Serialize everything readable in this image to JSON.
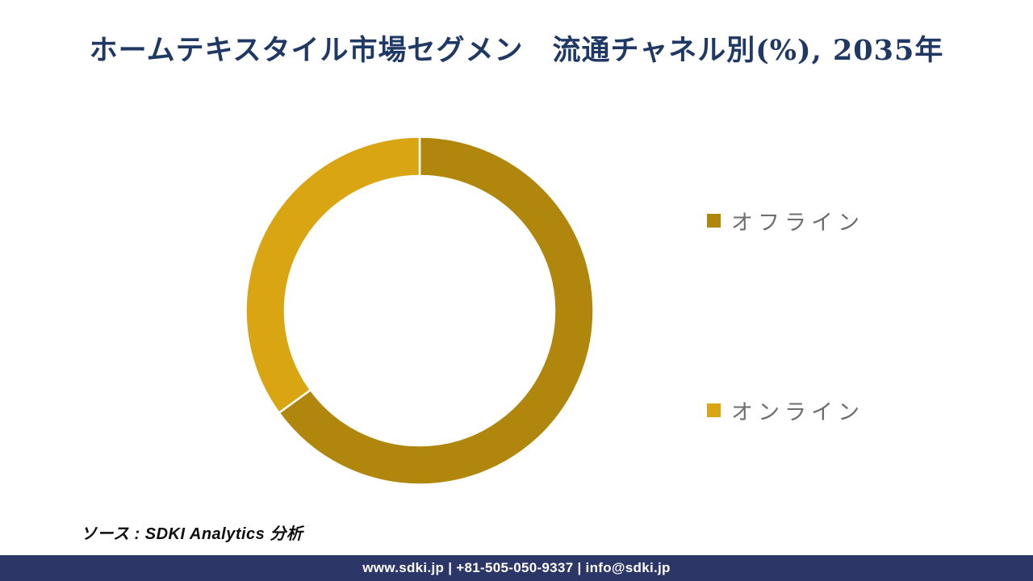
{
  "title": "ホームテキスタイル市場セグメン　流通チャネル別(%), 2035年",
  "source_note": "ソース : SDKI Analytics 分析",
  "footer": {
    "text": "www.sdki.jp | +81-505-050-9337 | info@sdki.jp",
    "bg_color": "#2C3768",
    "text_color": "#ffffff"
  },
  "colors": {
    "title_text": "#1F3864",
    "legend_text": "#6E6E6E",
    "offline_segment": "#B0860D",
    "online_segment": "#D9A513",
    "segment_gap_stroke": "#ffffff"
  },
  "legend": {
    "position": "right",
    "items": [
      {
        "label": "オフライン",
        "color": "#B0860D"
      },
      {
        "label": "オンライン",
        "color": "#D9A513"
      }
    ]
  },
  "chart_data": {
    "type": "pie",
    "subtype": "donut",
    "title": "ホームテキスタイル市場セグメン　流通チャネル別(%), 2035年",
    "unit": "%",
    "year": "2035年",
    "categories": [
      "オフライン",
      "オンライン"
    ],
    "values": [
      65,
      35
    ],
    "colors": [
      "#B0860D",
      "#D9A513"
    ],
    "start_angle_deg": 0,
    "direction": "clockwise",
    "inner_radius_ratio": 0.775,
    "legend_position": "right",
    "data_labels_shown": false,
    "grid": false
  }
}
